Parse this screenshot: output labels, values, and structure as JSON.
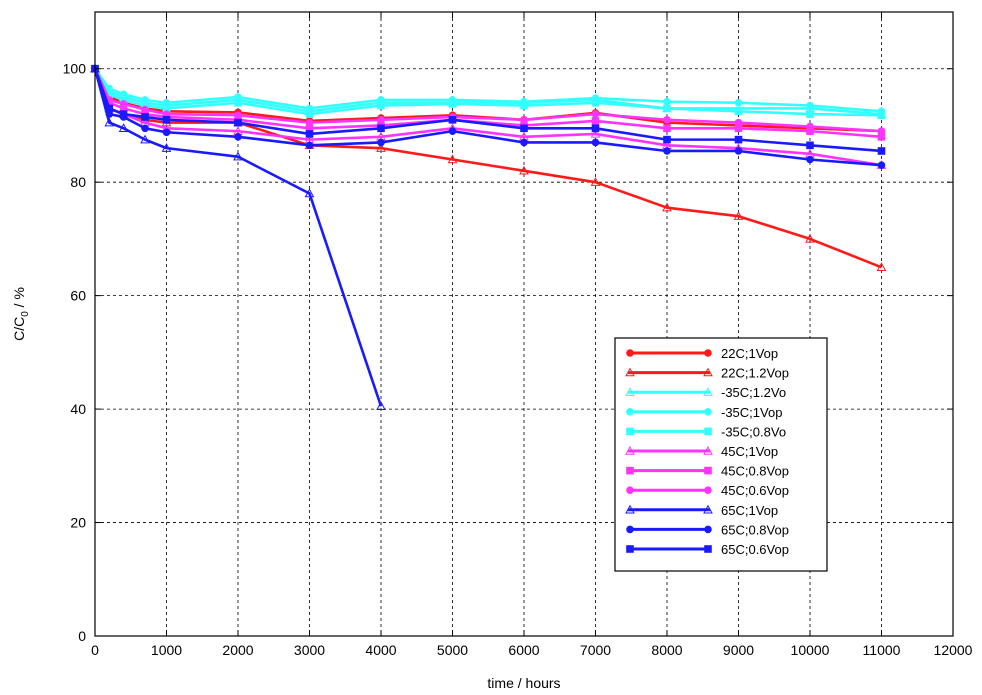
{
  "chart_data": {
    "type": "line",
    "title": "",
    "xlabel": "time  / hours",
    "ylabel_main": "C/C",
    "ylabel_sub": "0",
    "ylabel_tail": "  /  %",
    "xlim": [
      0,
      12000
    ],
    "ylim": [
      0,
      110
    ],
    "xticks": [
      0,
      1000,
      2000,
      3000,
      4000,
      5000,
      6000,
      7000,
      8000,
      9000,
      10000,
      11000,
      12000
    ],
    "yticks": [
      0,
      20,
      40,
      60,
      80,
      100
    ],
    "grid": true,
    "legend_position": "center-right",
    "series": [
      {
        "name": "22C;1Vop",
        "color": "#ff1a1a",
        "marker": "circle",
        "x": [
          0,
          200,
          400,
          700,
          1000,
          2000,
          3000,
          4000,
          5000,
          6000,
          7000,
          8000,
          9000,
          10000,
          11000
        ],
        "y": [
          100,
          95,
          94,
          93,
          92.5,
          92.3,
          90.8,
          91.3,
          91.8,
          91.0,
          92.2,
          90.5,
          90.0,
          89.5,
          89.0
        ]
      },
      {
        "name": "22C;1.2Vop",
        "color": "#ff1a1a",
        "marker": "triangle",
        "x": [
          0,
          200,
          400,
          700,
          1000,
          2000,
          3000,
          4000,
          5000,
          6000,
          7000,
          8000,
          9000,
          10000,
          11000
        ],
        "y": [
          100,
          93,
          92,
          91,
          90.5,
          90.5,
          86.5,
          86.0,
          84.0,
          82.0,
          80.0,
          75.5,
          74.0,
          70.0,
          65.0
        ]
      },
      {
        "name": "-35C;1.2Vo",
        "color": "#33ffff",
        "marker": "triangle",
        "x": [
          0,
          200,
          400,
          700,
          1000,
          2000,
          3000,
          4000,
          5000,
          6000,
          7000,
          8000,
          9000,
          10000,
          11000
        ],
        "y": [
          100,
          96,
          95,
          94,
          93.5,
          94.5,
          92.5,
          94.0,
          94.0,
          94.0,
          94.5,
          93.0,
          93.0,
          93.0,
          92.0
        ]
      },
      {
        "name": "-35C;1Vop",
        "color": "#33ffff",
        "marker": "circle",
        "x": [
          0,
          200,
          400,
          700,
          1000,
          2000,
          3000,
          4000,
          5000,
          6000,
          7000,
          8000,
          9000,
          10000,
          11000
        ],
        "y": [
          100,
          96.5,
          95.5,
          94.5,
          94.0,
          95.0,
          93.0,
          94.5,
          94.5,
          94.2,
          94.8,
          94.2,
          94.0,
          93.5,
          92.5
        ]
      },
      {
        "name": "-35C;0.8Vo",
        "color": "#33ffff",
        "marker": "square",
        "x": [
          0,
          200,
          400,
          700,
          1000,
          2000,
          3000,
          4000,
          5000,
          6000,
          7000,
          8000,
          9000,
          10000,
          11000
        ],
        "y": [
          100,
          95.5,
          94.5,
          93.5,
          93.0,
          94.0,
          92.0,
          93.5,
          93.8,
          93.5,
          94.0,
          93.0,
          92.5,
          92.0,
          91.8
        ]
      },
      {
        "name": "45C;1Vop",
        "color": "#ff33ff",
        "marker": "triangle",
        "x": [
          0,
          200,
          400,
          700,
          1000,
          2000,
          3000,
          4000,
          5000,
          6000,
          7000,
          8000,
          9000,
          10000,
          11000
        ],
        "y": [
          100,
          93,
          92,
          90.5,
          89.5,
          89.0,
          87.5,
          88.0,
          89.5,
          88.0,
          88.5,
          86.5,
          86.0,
          85.0,
          83.0
        ]
      },
      {
        "name": "45C;0.8Vop",
        "color": "#ff33ff",
        "marker": "square",
        "x": [
          0,
          200,
          400,
          700,
          1000,
          2000,
          3000,
          4000,
          5000,
          6000,
          7000,
          8000,
          9000,
          10000,
          11000
        ],
        "y": [
          100,
          94,
          93,
          92,
          91.5,
          91.0,
          89.5,
          90.0,
          91.0,
          90.0,
          90.8,
          89.5,
          89.5,
          89.0,
          88.0
        ]
      },
      {
        "name": "45C;0.6Vop",
        "color": "#ff33ff",
        "marker": "circle",
        "x": [
          0,
          200,
          400,
          700,
          1000,
          2000,
          3000,
          4000,
          5000,
          6000,
          7000,
          8000,
          9000,
          10000,
          11000
        ],
        "y": [
          100,
          94.5,
          93.8,
          92.8,
          92.0,
          91.8,
          90.5,
          91.0,
          91.5,
          91.0,
          92.0,
          91.0,
          90.5,
          89.8,
          89.0
        ]
      },
      {
        "name": "65C;1Vop",
        "color": "#1a1aff",
        "marker": "triangle",
        "x": [
          0,
          200,
          400,
          700,
          1000,
          2000,
          3000,
          4000
        ],
        "y": [
          100,
          90.5,
          89.5,
          87.5,
          86.0,
          84.5,
          78.0,
          40.5
        ]
      },
      {
        "name": "65C;0.8Vop",
        "color": "#1a1aff",
        "marker": "circle",
        "x": [
          0,
          200,
          400,
          700,
          1000,
          2000,
          3000,
          4000,
          5000,
          6000,
          7000,
          8000,
          9000,
          10000,
          11000
        ],
        "y": [
          100,
          92,
          91.5,
          89.5,
          88.8,
          88.0,
          86.5,
          87.0,
          89.0,
          87.0,
          87.0,
          85.5,
          85.5,
          84.0,
          83.0
        ]
      },
      {
        "name": "65C;0.6Vop",
        "color": "#1a1aff",
        "marker": "square",
        "x": [
          0,
          200,
          400,
          700,
          1000,
          2000,
          3000,
          4000,
          5000,
          6000,
          7000,
          8000,
          9000,
          10000,
          11000
        ],
        "y": [
          100,
          93,
          92,
          91.5,
          91.0,
          90.5,
          88.5,
          89.5,
          91.0,
          89.5,
          89.5,
          87.5,
          87.5,
          86.5,
          85.5
        ]
      }
    ]
  }
}
